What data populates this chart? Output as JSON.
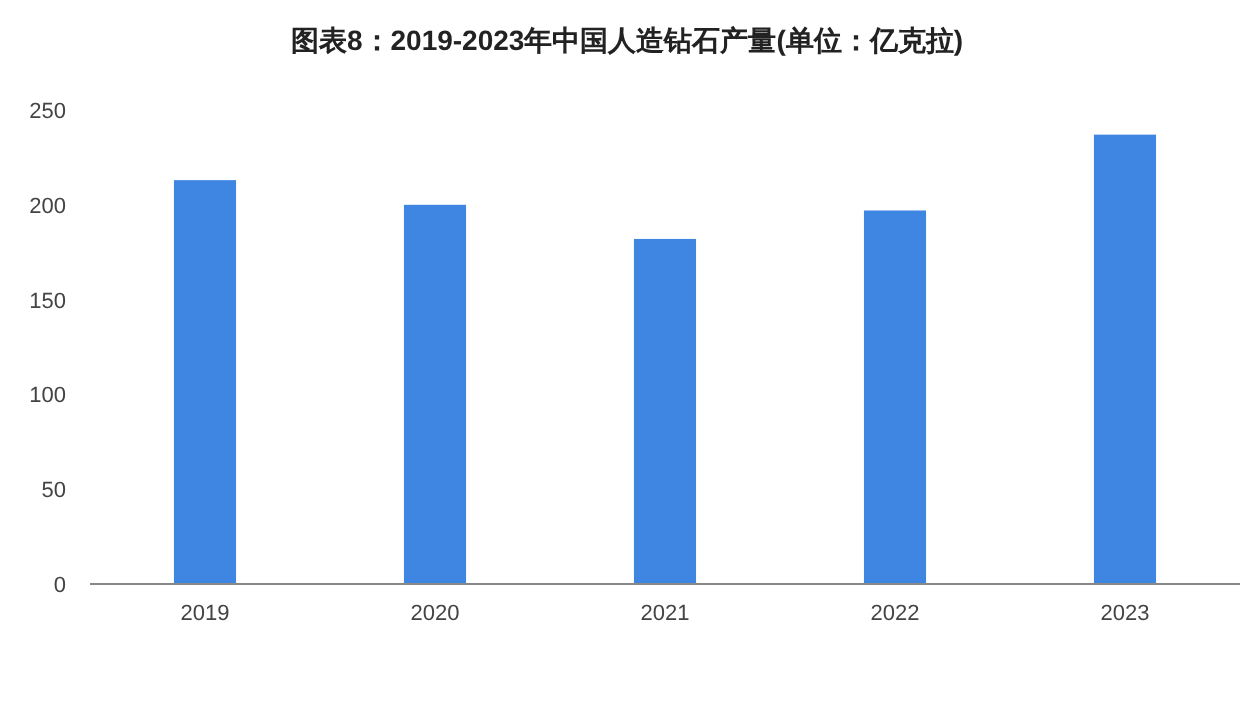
{
  "chart_data": {
    "type": "bar",
    "title": "图表8：2019-2023年中国人造钻石产量(单位：亿克拉)",
    "categories": [
      "2019",
      "2020",
      "2021",
      "2022",
      "2023"
    ],
    "values": [
      213,
      200,
      182,
      197,
      237
    ],
    "color": "#3f85e2",
    "ylim": [
      0,
      250
    ],
    "yticks": [
      0,
      50,
      100,
      150,
      200,
      250
    ],
    "grid": false
  }
}
